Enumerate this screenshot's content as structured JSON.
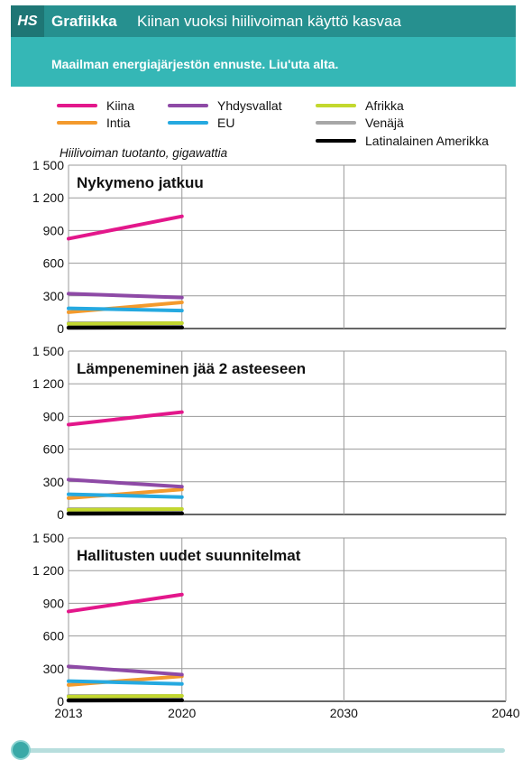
{
  "header": {
    "logo": "HS",
    "section": "Grafiikka",
    "title": "Kiinan vuoksi hiilivoiman käyttö kasvaa",
    "subtitle": "Maailman energiajärjestön ennuste. Liu'uta alta."
  },
  "unit_label": "Hiilivoiman tuotanto, gigawattia",
  "colors": {
    "header_bg": "#35b7b6",
    "header_bar": "#26908f",
    "slider": "#3aa9a7"
  },
  "slider": {
    "value_year": 2013,
    "range": [
      2013,
      2040
    ]
  },
  "legend": [
    {
      "name": "Kiina",
      "color": "#e3178b"
    },
    {
      "name": "Intia",
      "color": "#f39a2d"
    },
    {
      "name": "Yhdysvallat",
      "color": "#8e4aa6"
    },
    {
      "name": "EU",
      "color": "#25a9e0"
    },
    {
      "name": "Afrikka",
      "color": "#c3d82e"
    },
    {
      "name": "Venäjä",
      "color": "#a7a7a7"
    },
    {
      "name": "Latinalainen Amerikka",
      "color": "#000000"
    }
  ],
  "chart_data": [
    {
      "type": "line",
      "title": "Nykymeno jatkuu",
      "x_ticks": [
        2013,
        2020,
        2030,
        2040
      ],
      "xlim": [
        2013,
        2040
      ],
      "y_ticks": [
        "0",
        "300",
        "600",
        "900",
        "1 200",
        "1 500"
      ],
      "ylim": [
        0,
        1500
      ],
      "grid": true,
      "series": [
        {
          "name": "Kiina",
          "x": [
            2013,
            2020
          ],
          "values": [
            825,
            1030
          ]
        },
        {
          "name": "Yhdysvallat",
          "x": [
            2013,
            2020
          ],
          "values": [
            320,
            285
          ]
        },
        {
          "name": "Intia",
          "x": [
            2013,
            2020
          ],
          "values": [
            150,
            240
          ]
        },
        {
          "name": "EU",
          "x": [
            2013,
            2020
          ],
          "values": [
            185,
            165
          ]
        },
        {
          "name": "Afrikka",
          "x": [
            2013,
            2020
          ],
          "values": [
            42,
            50
          ]
        },
        {
          "name": "Venäjä",
          "x": [
            2013,
            2020
          ],
          "values": [
            50,
            50
          ]
        },
        {
          "name": "Latinalainen Amerikka",
          "x": [
            2013,
            2020
          ],
          "values": [
            8,
            10
          ]
        }
      ]
    },
    {
      "type": "line",
      "title": "Lämpeneminen jää 2 asteeseen",
      "x_ticks": [
        2013,
        2020,
        2030,
        2040
      ],
      "xlim": [
        2013,
        2040
      ],
      "y_ticks": [
        "0",
        "300",
        "600",
        "900",
        "1 200",
        "1 500"
      ],
      "ylim": [
        0,
        1500
      ],
      "grid": true,
      "series": [
        {
          "name": "Kiina",
          "x": [
            2013,
            2020
          ],
          "values": [
            825,
            940
          ]
        },
        {
          "name": "Yhdysvallat",
          "x": [
            2013,
            2020
          ],
          "values": [
            320,
            255
          ]
        },
        {
          "name": "Intia",
          "x": [
            2013,
            2020
          ],
          "values": [
            150,
            230
          ]
        },
        {
          "name": "EU",
          "x": [
            2013,
            2020
          ],
          "values": [
            185,
            160
          ]
        },
        {
          "name": "Afrikka",
          "x": [
            2013,
            2020
          ],
          "values": [
            42,
            50
          ]
        },
        {
          "name": "Venäjä",
          "x": [
            2013,
            2020
          ],
          "values": [
            50,
            50
          ]
        },
        {
          "name": "Latinalainen Amerikka",
          "x": [
            2013,
            2020
          ],
          "values": [
            8,
            10
          ]
        }
      ]
    },
    {
      "type": "line",
      "title": "Hallitusten uudet suunnitelmat",
      "x_ticks": [
        2013,
        2020,
        2030,
        2040
      ],
      "xlim": [
        2013,
        2040
      ],
      "y_ticks": [
        "0",
        "300",
        "600",
        "900",
        "1 200",
        "1 500"
      ],
      "ylim": [
        0,
        1500
      ],
      "grid": true,
      "series": [
        {
          "name": "Kiina",
          "x": [
            2013,
            2020
          ],
          "values": [
            825,
            980
          ]
        },
        {
          "name": "Yhdysvallat",
          "x": [
            2013,
            2020
          ],
          "values": [
            320,
            245
          ]
        },
        {
          "name": "Intia",
          "x": [
            2013,
            2020
          ],
          "values": [
            150,
            230
          ]
        },
        {
          "name": "EU",
          "x": [
            2013,
            2020
          ],
          "values": [
            185,
            160
          ]
        },
        {
          "name": "Afrikka",
          "x": [
            2013,
            2020
          ],
          "values": [
            42,
            50
          ]
        },
        {
          "name": "Venäjä",
          "x": [
            2013,
            2020
          ],
          "values": [
            50,
            50
          ]
        },
        {
          "name": "Latinalainen Amerikka",
          "x": [
            2013,
            2020
          ],
          "values": [
            8,
            10
          ]
        }
      ]
    }
  ]
}
